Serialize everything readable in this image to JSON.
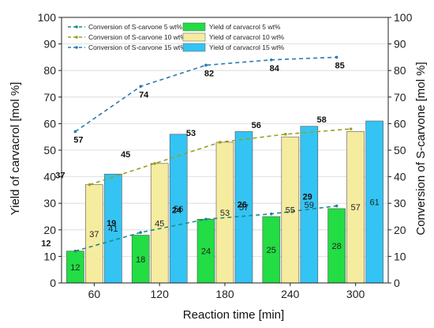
{
  "chart_data": {
    "type": "bar",
    "xlabel": "Reaction time [min]",
    "ylabel_left": "Yield of carvacrol [mol %]",
    "ylabel_right": "Conversion of S-carvone [mol %]",
    "ylim": [
      0,
      100
    ],
    "yticks": [
      0,
      10,
      20,
      30,
      40,
      50,
      60,
      70,
      80,
      90,
      100
    ],
    "categories": [
      "60",
      "120",
      "180",
      "240",
      "300"
    ],
    "bar_series": [
      {
        "name": "Yield of carvacrol 5 wt%",
        "values": [
          12,
          18,
          24,
          25,
          28
        ],
        "color": "#22dd44"
      },
      {
        "name": "Yield of carvacrol 10 wt%",
        "values": [
          37,
          45,
          53,
          55,
          57
        ],
        "color": "#f6eca0"
      },
      {
        "name": "Yield of carvacrol 15 wt%",
        "values": [
          41,
          56,
          57,
          59,
          61
        ],
        "color": "#33c4f4"
      }
    ],
    "line_series": [
      {
        "name": "Conversion of S-carvone 5 wt%",
        "values": [
          12,
          19,
          24,
          26,
          29
        ],
        "color": "#1a8a8a"
      },
      {
        "name": "Conversion of S-carvone 10 wt%",
        "values": [
          37,
          45,
          53,
          56,
          58
        ],
        "color": "#9aa020"
      },
      {
        "name": "Conversion of S-carvone 15 wt%",
        "values": [
          57,
          74,
          82,
          84,
          85
        ],
        "color": "#2a7ab0"
      }
    ],
    "bar_labels": [
      [
        "12",
        "18",
        "24",
        "25",
        "28"
      ],
      [
        "37",
        "45",
        "53",
        "55",
        "57"
      ],
      [
        "41",
        "56",
        "57",
        "59",
        "61"
      ]
    ],
    "line_labels": [
      [
        "12",
        "19",
        "24",
        "26",
        "29"
      ],
      [
        "37",
        "45",
        "53",
        "56",
        "58"
      ],
      [
        "57",
        "74",
        "82",
        "84",
        "85"
      ]
    ],
    "legend_position": "top-left"
  }
}
